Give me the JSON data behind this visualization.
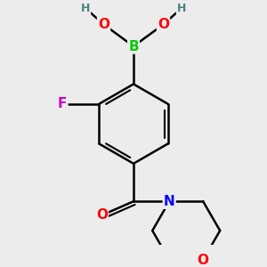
{
  "background_color": "#ececec",
  "atom_colors": {
    "C": "#000000",
    "H": "#4a8080",
    "O": "#ff0000",
    "B": "#00cc00",
    "F": "#cc00cc",
    "N": "#0000ff"
  },
  "bond_color": "#000000",
  "bond_width": 1.8,
  "font_size_atoms": 11,
  "font_size_H": 9
}
